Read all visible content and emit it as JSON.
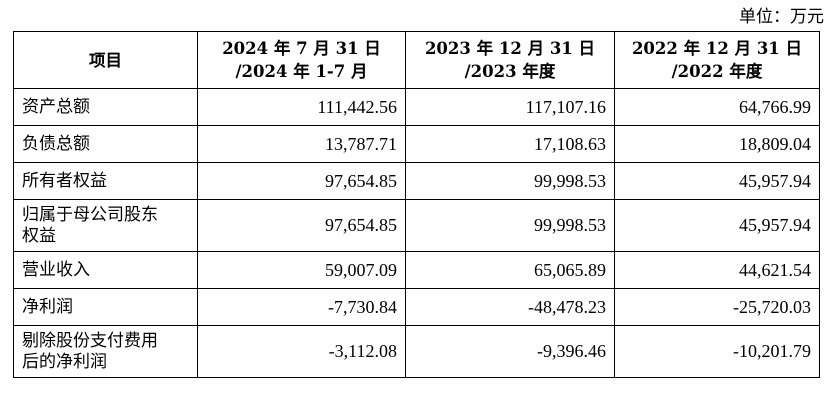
{
  "unit_label": "单位：万元",
  "table": {
    "headers": [
      {
        "lines": [
          "项目"
        ]
      },
      {
        "lines": [
          "2024 年 7 月 31 日",
          "/2024 年 1-7 月"
        ]
      },
      {
        "lines": [
          "2023 年 12 月 31 日",
          "/2023 年度"
        ]
      },
      {
        "lines": [
          "2022 年 12 月 31 日",
          "/2022 年度"
        ]
      }
    ],
    "rows": [
      {
        "label": [
          "资产总额"
        ],
        "values": [
          "111,442.56",
          "117,107.16",
          "64,766.99"
        ]
      },
      {
        "label": [
          "负债总额"
        ],
        "values": [
          "13,787.71",
          "17,108.63",
          "18,809.04"
        ]
      },
      {
        "label": [
          "所有者权益"
        ],
        "values": [
          "97,654.85",
          "99,998.53",
          "45,957.94"
        ]
      },
      {
        "label": [
          "归属于母公司股东",
          "权益"
        ],
        "values": [
          "97,654.85",
          "99,998.53",
          "45,957.94"
        ]
      },
      {
        "label": [
          "营业收入"
        ],
        "values": [
          "59,007.09",
          "65,065.89",
          "44,621.54"
        ]
      },
      {
        "label": [
          "净利润"
        ],
        "values": [
          "-7,730.84",
          "-48,478.23",
          "-25,720.03"
        ]
      },
      {
        "label": [
          "剔除股份支付费用",
          "后的净利润"
        ],
        "values": [
          "-3,112.08",
          "-9,396.46",
          "-10,201.79"
        ]
      }
    ]
  }
}
